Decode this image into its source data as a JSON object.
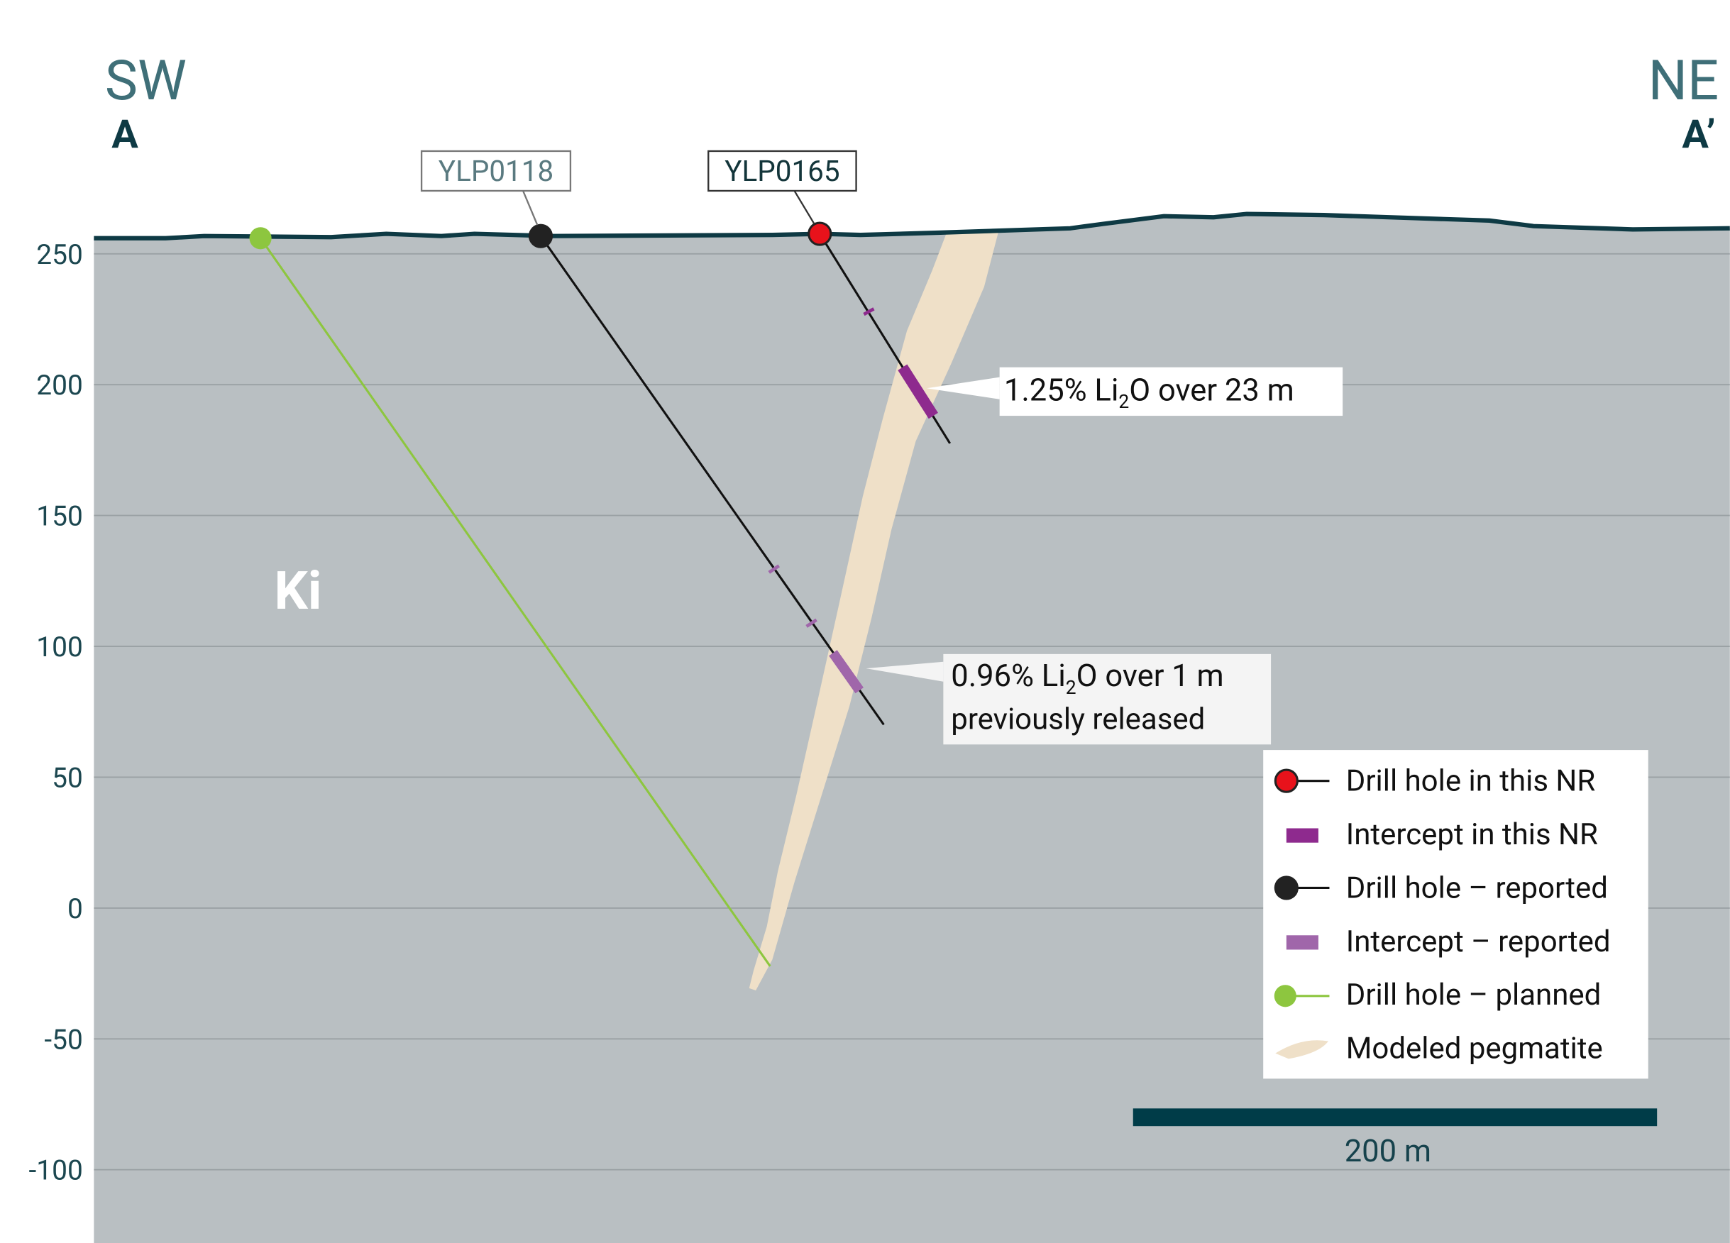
{
  "section": {
    "left_direction": "SW",
    "left_label": "A",
    "right_direction": "NE",
    "right_label": "A’",
    "unit_label": "Ki"
  },
  "elevation_axis": {
    "ylim": [
      -128,
      347
    ],
    "yticks": [
      250,
      200,
      150,
      100,
      50,
      0,
      -50,
      -100
    ]
  },
  "holes": [
    {
      "id": "YLP0118"
    },
    {
      "id": "YLP0165"
    }
  ],
  "annotations": [
    {
      "before": "1.25% Li",
      "sub": "2",
      "after": "O over 23 m"
    },
    {
      "before": "0.96% Li",
      "sub": "2",
      "after": "O over 1 m",
      "note": "previously released"
    }
  ],
  "legend": [
    "Drill hole in this NR",
    "Intercept in this NR",
    "Drill hole – reported",
    "Intercept – reported",
    "Drill hole – planned",
    "Modeled pegmatite"
  ],
  "scale_bar": "200 m"
}
